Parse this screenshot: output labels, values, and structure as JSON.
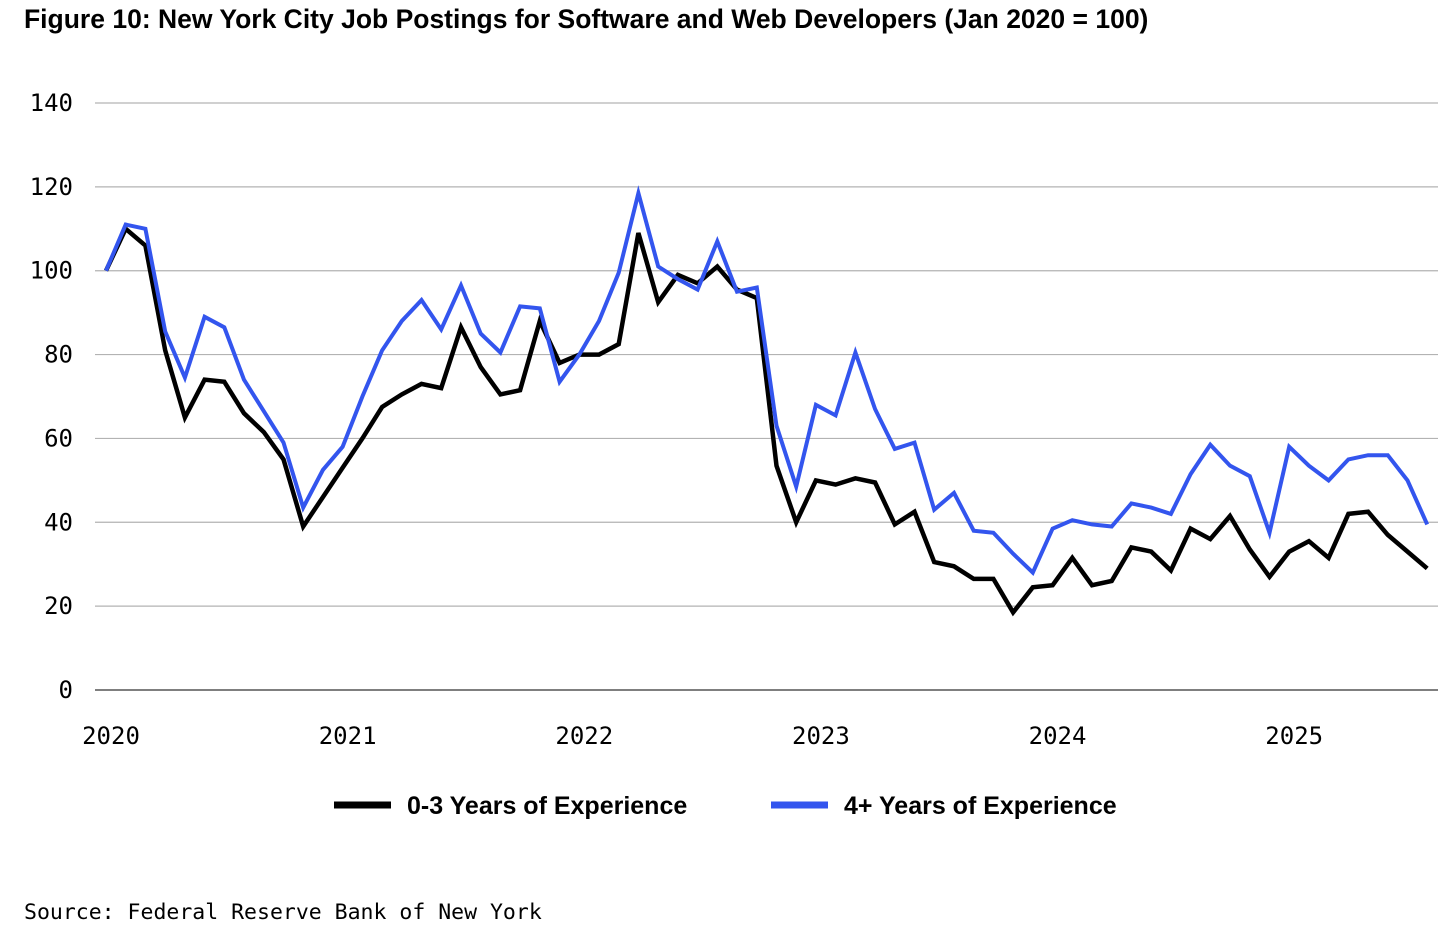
{
  "chart_data": {
    "type": "line",
    "title": "Figure 10: New York City Job Postings for Software and Web Developers (Jan 2020 = 100)",
    "xlabel": "",
    "ylabel": "",
    "ylim": [
      0,
      140
    ],
    "yticks": [
      0,
      20,
      40,
      60,
      80,
      100,
      120,
      140
    ],
    "xticks": [
      {
        "label": "2020",
        "index": 0
      },
      {
        "label": "2021",
        "index": 12
      },
      {
        "label": "2022",
        "index": 24
      },
      {
        "label": "2023",
        "index": 36
      },
      {
        "label": "2024",
        "index": 48
      },
      {
        "label": "2025",
        "index": 60
      }
    ],
    "grid": true,
    "legend_position": "bottom-center",
    "series": [
      {
        "name": "0-3 Years of Experience",
        "color": "#000000",
        "values": [
          100,
          110,
          106,
          81,
          65,
          74,
          73.5,
          66,
          61.5,
          55,
          39,
          46,
          53,
          60,
          67.5,
          70.5,
          73,
          72,
          86.5,
          77,
          70.5,
          71.5,
          88,
          78,
          80,
          80,
          82.5,
          109,
          92.5,
          99,
          97,
          101,
          95.5,
          93.5,
          53.5,
          40,
          50,
          49,
          50.5,
          49.5,
          39.5,
          42.5,
          30.5,
          29.5,
          26.5,
          26.5,
          18.5,
          24.5,
          25,
          31.5,
          25,
          26,
          34,
          33,
          28.5,
          38.5,
          36,
          41.5,
          33.5,
          27,
          33,
          35.5,
          31.5,
          42,
          42.5,
          37,
          33,
          29
        ]
      },
      {
        "name": "4+ Years of Experience",
        "color": "#3355ee",
        "values": [
          100,
          111,
          110,
          85.5,
          74.5,
          89,
          86.5,
          74,
          66.5,
          59,
          43.5,
          52.5,
          58,
          70,
          81,
          88,
          93,
          86,
          96.5,
          85,
          80.5,
          91.5,
          91,
          73.5,
          80,
          88,
          99.5,
          118.5,
          101,
          98,
          95.5,
          107,
          95,
          96,
          63,
          48.5,
          68,
          65.5,
          80.5,
          67,
          57.5,
          59,
          43,
          47,
          38,
          37.5,
          32.5,
          28,
          38.5,
          40.5,
          39.5,
          39,
          44.5,
          43.5,
          42,
          51.5,
          58.5,
          53.5,
          51,
          37.5,
          58,
          53.5,
          50,
          55,
          56,
          56,
          50,
          39.5
        ]
      }
    ],
    "source": "Source: Federal Reserve Bank of New York"
  }
}
